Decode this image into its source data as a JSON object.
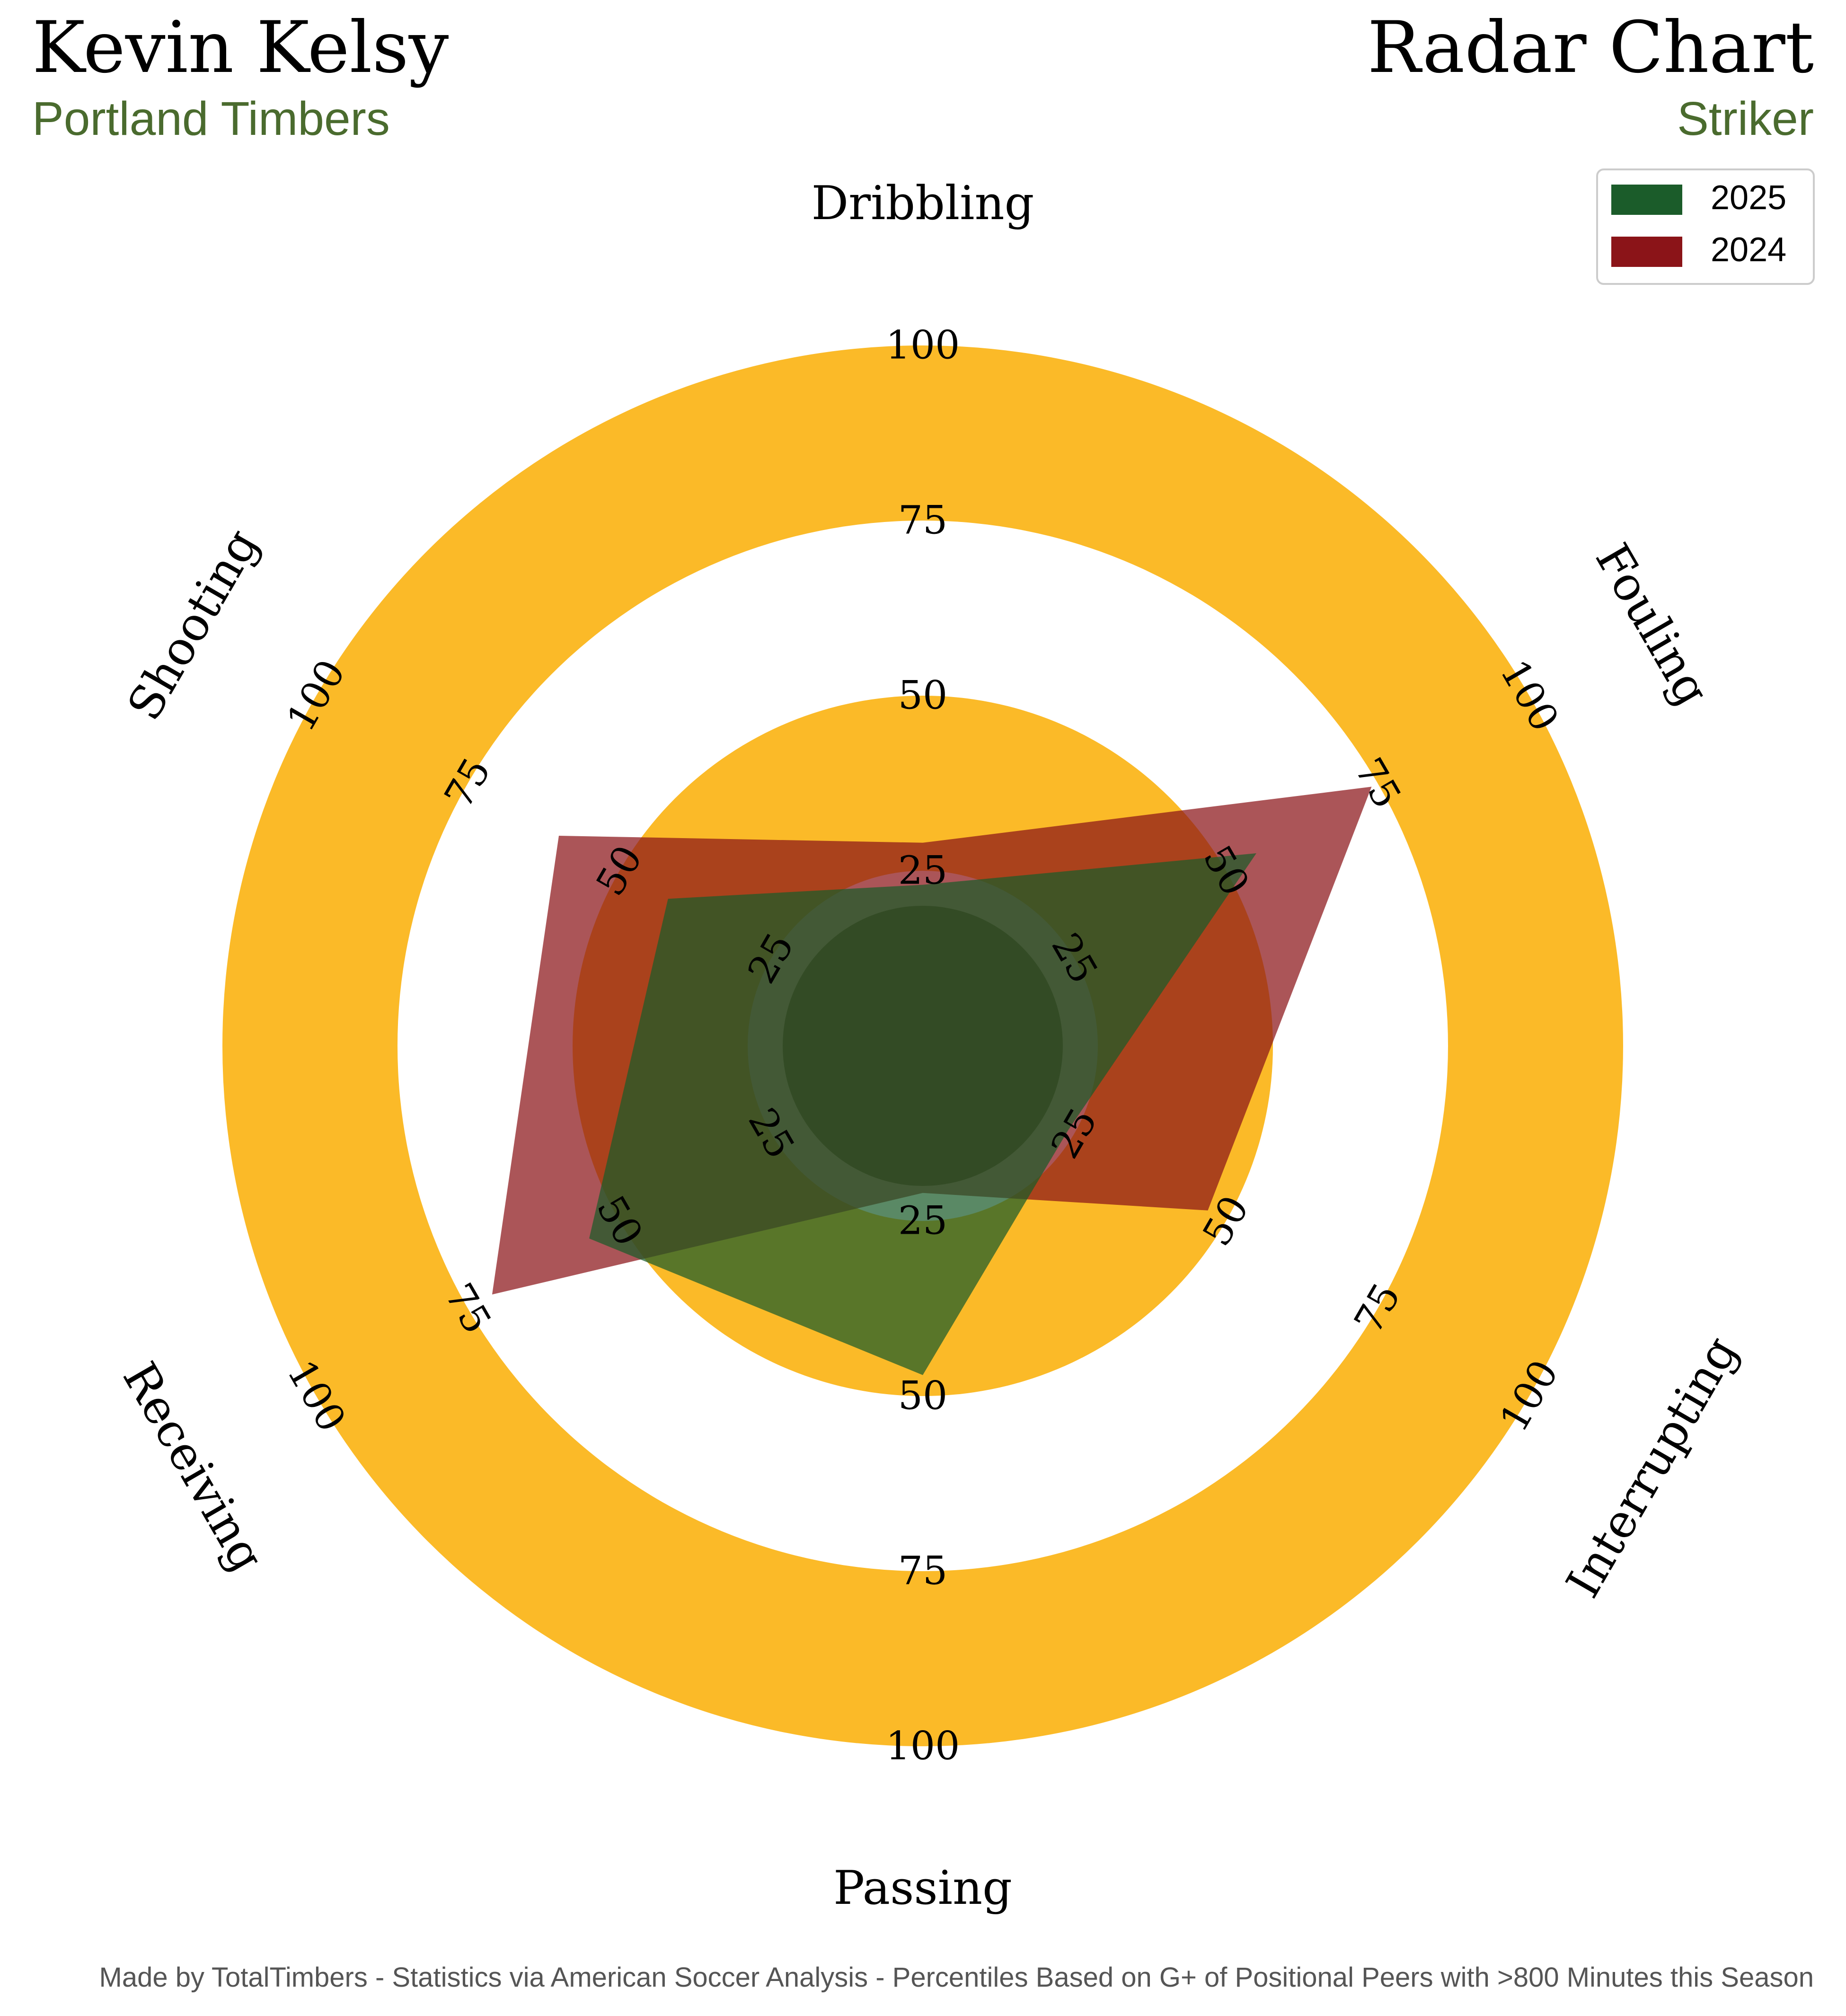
{
  "header": {
    "player_name": "Kevin Kelsy",
    "team": "Portland Timbers",
    "chart_title": "Radar Chart",
    "position": "Striker"
  },
  "footer": {
    "credit": "Made by TotalTimbers - Statistics via American Soccer Analysis - Percentiles Based on G+ of Positional Peers with >800 Minutes this Season"
  },
  "colors": {
    "ring": "#FBBA28",
    "inner_disc": "#3F4A20",
    "series_2025": "#1B5C2A",
    "series_2024": "#8B1418",
    "overlap": "#2A2F16",
    "title_text": "#000000",
    "subtitle_text": "#4A6B2E",
    "footer_text": "#555555"
  },
  "chart_data": {
    "type": "radar",
    "axes": [
      "Dribbling",
      "Fouling",
      "Interrupting",
      "Passing",
      "Receiving",
      "Shooting"
    ],
    "rlim": [
      0,
      100
    ],
    "tick_values": [
      25,
      50,
      75,
      100
    ],
    "tick_labels": [
      "25",
      "50",
      "75",
      "100"
    ],
    "series": [
      {
        "name": "2025",
        "values": [
          23,
          55,
          24,
          47,
          55,
          42
        ]
      },
      {
        "name": "2024",
        "values": [
          29,
          74,
          47,
          21,
          71,
          60
        ]
      }
    ],
    "legend_position": "top-right",
    "grid": "alternating rings"
  }
}
